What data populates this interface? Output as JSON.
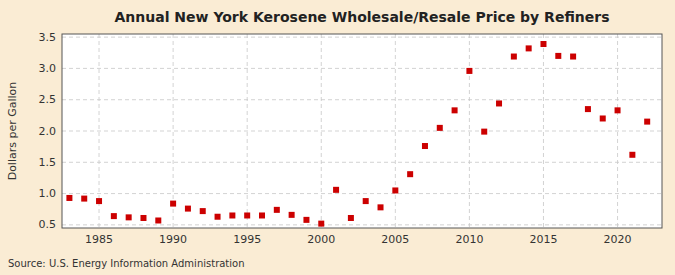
{
  "chart_data": {
    "type": "scatter",
    "title": "Annual New York Kerosene Wholesale/Resale Price by Refiners",
    "ylabel": "Dollars per Gallon",
    "source": "Source: U.S. Energy Information Administration",
    "x": [
      1983,
      1984,
      1985,
      1986,
      1987,
      1988,
      1989,
      1990,
      1991,
      1992,
      1993,
      1994,
      1995,
      1996,
      1997,
      1998,
      1999,
      2000,
      2001,
      2002,
      2003,
      2004,
      2005,
      2006,
      2007,
      2008,
      2009,
      2010,
      2011,
      2012,
      2013,
      2014,
      2015,
      2016,
      2017,
      2018,
      2019,
      2020,
      2021,
      2022
    ],
    "values": [
      0.93,
      0.92,
      0.88,
      0.64,
      0.62,
      0.61,
      0.57,
      0.84,
      0.76,
      0.72,
      0.63,
      0.65,
      0.65,
      0.65,
      0.74,
      0.66,
      0.58,
      0.52,
      1.06,
      0.61,
      0.88,
      0.78,
      1.05,
      1.31,
      1.76,
      2.05,
      2.33,
      2.96,
      1.99,
      2.44,
      3.19,
      3.32,
      3.39,
      3.2,
      3.19,
      2.35,
      2.2,
      2.33,
      1.62,
      2.15
    ],
    "color": "#cc0000",
    "marker": "square",
    "xlim": [
      1982.5,
      2023.0
    ],
    "xticks": [
      1985,
      1990,
      1995,
      2000,
      2005,
      2010,
      2015,
      2020
    ],
    "ylim": [
      0.45,
      3.55
    ],
    "yticks": [
      0.5,
      {
        "value": 1.0,
        "label": "1.0"
      },
      1.5,
      {
        "value": 2.0,
        "label": "2.0"
      },
      2.5,
      {
        "value": 3.0,
        "label": "3.0"
      },
      3.5
    ],
    "grid": true
  }
}
